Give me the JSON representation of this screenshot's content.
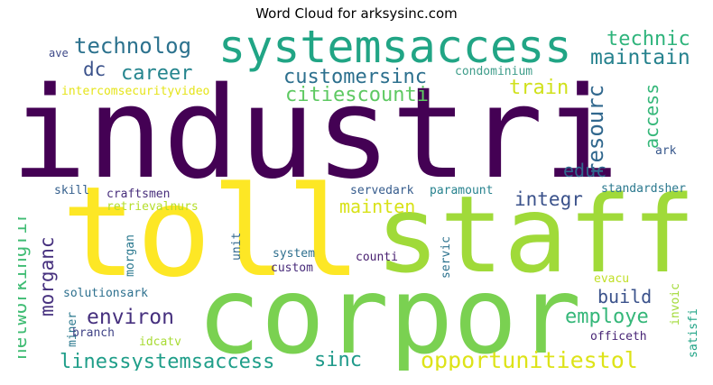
{
  "title": "Word Cloud for arksysinc.com",
  "words": {
    "industri": {
      "text": "industri",
      "color": "#440154"
    },
    "toll": {
      "text": "toll",
      "color": "#fde725"
    },
    "staff": {
      "text": "staff",
      "color": "#a0da39"
    },
    "corpor": {
      "text": "corpor",
      "color": "#7ad151"
    },
    "systemsaccess": {
      "text": "systemsaccess",
      "color": "#21a585"
    },
    "technolog": {
      "text": "technolog",
      "color": "#2c728e"
    },
    "technic": {
      "text": "technic",
      "color": "#2fb47c"
    },
    "maintain": {
      "text": "maintain",
      "color": "#26828e"
    },
    "dc": {
      "text": "dc",
      "color": "#3b528b"
    },
    "career": {
      "text": "career",
      "color": "#25858e"
    },
    "customersinc": {
      "text": "customersinc",
      "color": "#2d708e"
    },
    "citiescounti": {
      "text": "citiescounti",
      "color": "#5ec962"
    },
    "condominium": {
      "text": "condominium",
      "color": "#3e9d8a"
    },
    "train": {
      "text": "train",
      "color": "#d0e11c"
    },
    "resourc": {
      "text": "resourc",
      "color": "#31688e"
    },
    "access": {
      "text": "access",
      "color": "#35b779"
    },
    "intercomsecurityvideo": {
      "text": "intercomsecurityvideo",
      "color": "#e5e419"
    },
    "ave": {
      "text": "ave",
      "color": "#3e4a89"
    },
    "ark": {
      "text": "ark",
      "color": "#38588c"
    },
    "educ": {
      "text": "educ",
      "color": "#31688e"
    },
    "integr": {
      "text": "integr",
      "color": "#3b528b"
    },
    "standardsher": {
      "text": "standardsher",
      "color": "#2a788e"
    },
    "skill": {
      "text": "skill",
      "color": "#35608d"
    },
    "craftsmen": {
      "text": "craftsmen",
      "color": "#472d7b"
    },
    "servedark": {
      "text": "servedark",
      "color": "#365c8d"
    },
    "paramount": {
      "text": "paramount",
      "color": "#26828e"
    },
    "mainten": {
      "text": "mainten",
      "color": "#d8e219"
    },
    "retrievalnurs": {
      "text": "retrievalnurs",
      "color": "#b5de2b"
    },
    "networkingfir": {
      "text": "networkingfir",
      "color": "#3fbc73"
    },
    "morganc": {
      "text": "morganc",
      "color": "#46307e"
    },
    "morgan": {
      "text": "morgan",
      "color": "#2a788e"
    },
    "unit": {
      "text": "unit",
      "color": "#31688e"
    },
    "system": {
      "text": "system",
      "color": "#2e6f8e"
    },
    "custom": {
      "text": "custom",
      "color": "#472a7a"
    },
    "counti": {
      "text": "counti",
      "color": "#481f70"
    },
    "servic": {
      "text": "servic",
      "color": "#2c728e"
    },
    "build": {
      "text": "build",
      "color": "#3b528b"
    },
    "environ": {
      "text": "environ",
      "color": "#46307e"
    },
    "employe": {
      "text": "employe",
      "color": "#35b779"
    },
    "solutionsark": {
      "text": "solutionsark",
      "color": "#2d708e"
    },
    "evacu": {
      "text": "evacu",
      "color": "#c0df25"
    },
    "invoic": {
      "text": "invoic",
      "color": "#a2da37"
    },
    "miner": {
      "text": "miner",
      "color": "#2a788e"
    },
    "branch": {
      "text": "branch",
      "color": "#414487"
    },
    "idcatv": {
      "text": "idcatv",
      "color": "#a8db34"
    },
    "officeth": {
      "text": "officeth",
      "color": "#482576"
    },
    "satisfi": {
      "text": "satisfi",
      "color": "#20a486"
    },
    "linessystemsaccess": {
      "text": "linessystemsaccess",
      "color": "#1f9e89"
    },
    "sinc": {
      "text": "sinc",
      "color": "#1f9a8a"
    },
    "opportunitiestol": {
      "text": "opportunitiestol",
      "color": "#dde318"
    }
  }
}
